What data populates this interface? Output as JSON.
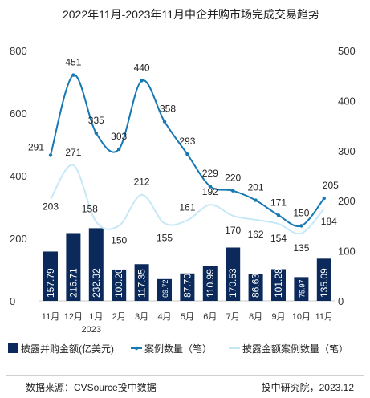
{
  "chart_data": {
    "type": "bar",
    "title": "2022年11月-2023年11月中企并购市场完成交易趋势",
    "categories": [
      "11月",
      "12月",
      "1月",
      "2月",
      "3月",
      "4月",
      "5月",
      "6月",
      "7月",
      "8月",
      "9月",
      "10月",
      "11月"
    ],
    "year_label": "2023",
    "left_axis": {
      "ticks": [
        "0",
        "200",
        "400",
        "600",
        "800"
      ],
      "ylim": [
        0,
        800
      ]
    },
    "right_axis": {
      "ticks": [
        "0",
        "100",
        "200",
        "300",
        "400",
        "500"
      ],
      "ylim": [
        0,
        500
      ]
    },
    "series": [
      {
        "name": "披露并购金额(亿美元)",
        "kind": "bar",
        "axis": "left",
        "color": "#0b2a5b",
        "values": [
          157.79,
          216.71,
          232.32,
          100.2,
          117.35,
          69.72,
          87.7,
          110.99,
          170.53,
          86.63,
          101.28,
          75.97,
          135.09
        ],
        "labels": [
          "157.79",
          "216.71",
          "232.32",
          "100.20",
          "117.35",
          "69.72",
          "87.70",
          "110.99",
          "170.53",
          "86.63",
          "101.28",
          "75.97",
          "135.09"
        ]
      },
      {
        "name": "案例数量（笔）",
        "kind": "line",
        "axis": "right",
        "color": "#1479b4",
        "values": [
          291,
          451,
          335,
          303,
          440,
          358,
          293,
          229,
          220,
          201,
          171,
          150,
          205
        ]
      },
      {
        "name": "披露金额案例数量（笔）",
        "kind": "line",
        "axis": "right",
        "color": "#c7e8f6",
        "values": [
          203,
          271,
          158,
          150,
          212,
          155,
          161,
          192,
          170,
          162,
          154,
          135,
          184
        ]
      }
    ]
  },
  "footer": {
    "source": "数据来源：CVSource投中数据",
    "credit": "投中研究院，2023.12"
  }
}
